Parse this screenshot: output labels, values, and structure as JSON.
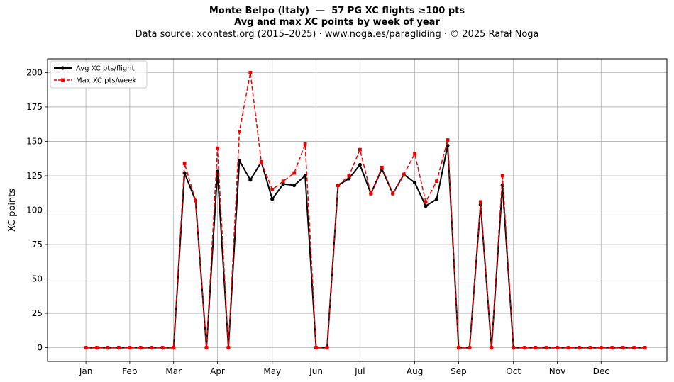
{
  "chart_data": {
    "type": "line",
    "title_line1": "Monte Belpo (Italy)  —  57 PG XC flights ≥100 pts",
    "title_line2": "Avg and max XC points by week of year",
    "subtitle": "Data source: xcontest.org (2015–2025)  ·  www.noga.es/paragliding  ·  © 2025 Rafał Noga",
    "ylabel": "XC points",
    "xlabel": "",
    "xlim": [
      -2.5,
      54
    ],
    "ylim": [
      -10,
      210
    ],
    "grid": true,
    "legend_position": "upper-left",
    "yticks": [
      0,
      25,
      50,
      75,
      100,
      125,
      150,
      175,
      200
    ],
    "month_ticks": [
      {
        "label": "Jan",
        "week": 1
      },
      {
        "label": "Feb",
        "week": 5
      },
      {
        "label": "Mar",
        "week": 9
      },
      {
        "label": "Apr",
        "week": 13
      },
      {
        "label": "May",
        "week": 18
      },
      {
        "label": "Jun",
        "week": 22
      },
      {
        "label": "Jul",
        "week": 26
      },
      {
        "label": "Aug",
        "week": 31
      },
      {
        "label": "Sep",
        "week": 35
      },
      {
        "label": "Oct",
        "week": 40
      },
      {
        "label": "Nov",
        "week": 44
      },
      {
        "label": "Dec",
        "week": 48
      }
    ],
    "weeks": [
      1,
      2,
      3,
      4,
      5,
      6,
      7,
      8,
      9,
      10,
      11,
      12,
      13,
      14,
      15,
      16,
      17,
      18,
      19,
      20,
      21,
      22,
      23,
      24,
      25,
      26,
      27,
      28,
      29,
      30,
      31,
      32,
      33,
      34,
      35,
      36,
      37,
      38,
      39,
      40,
      41,
      42,
      43,
      44,
      45,
      46,
      47,
      48,
      49,
      50,
      51,
      52
    ],
    "series": [
      {
        "name": "Avg XC pts/flight",
        "color": "#000000",
        "style": "solid",
        "marker": "circle",
        "values": [
          0,
          0,
          0,
          0,
          0,
          0,
          0,
          0,
          0,
          127,
          107,
          0,
          128,
          0,
          136,
          122,
          135,
          108,
          119,
          118,
          125,
          0,
          0,
          118,
          123,
          133,
          112,
          130,
          112,
          126,
          120,
          103,
          108,
          147,
          0,
          0,
          104,
          0,
          118,
          0,
          0,
          0,
          0,
          0,
          0,
          0,
          0,
          0,
          0,
          0,
          0,
          0
        ]
      },
      {
        "name": "Max XC pts/week",
        "color": "#ee0000",
        "style": "dashed",
        "marker": "square",
        "values": [
          0,
          0,
          0,
          0,
          0,
          0,
          0,
          0,
          0,
          134,
          107,
          0,
          145,
          0,
          157,
          200,
          135,
          115,
          121,
          127,
          148,
          0,
          0,
          118,
          125,
          144,
          112,
          131,
          112,
          126,
          141,
          106,
          121,
          151,
          0,
          0,
          106,
          0,
          125,
          0,
          0,
          0,
          0,
          0,
          0,
          0,
          0,
          0,
          0,
          0,
          0,
          0
        ]
      }
    ]
  }
}
